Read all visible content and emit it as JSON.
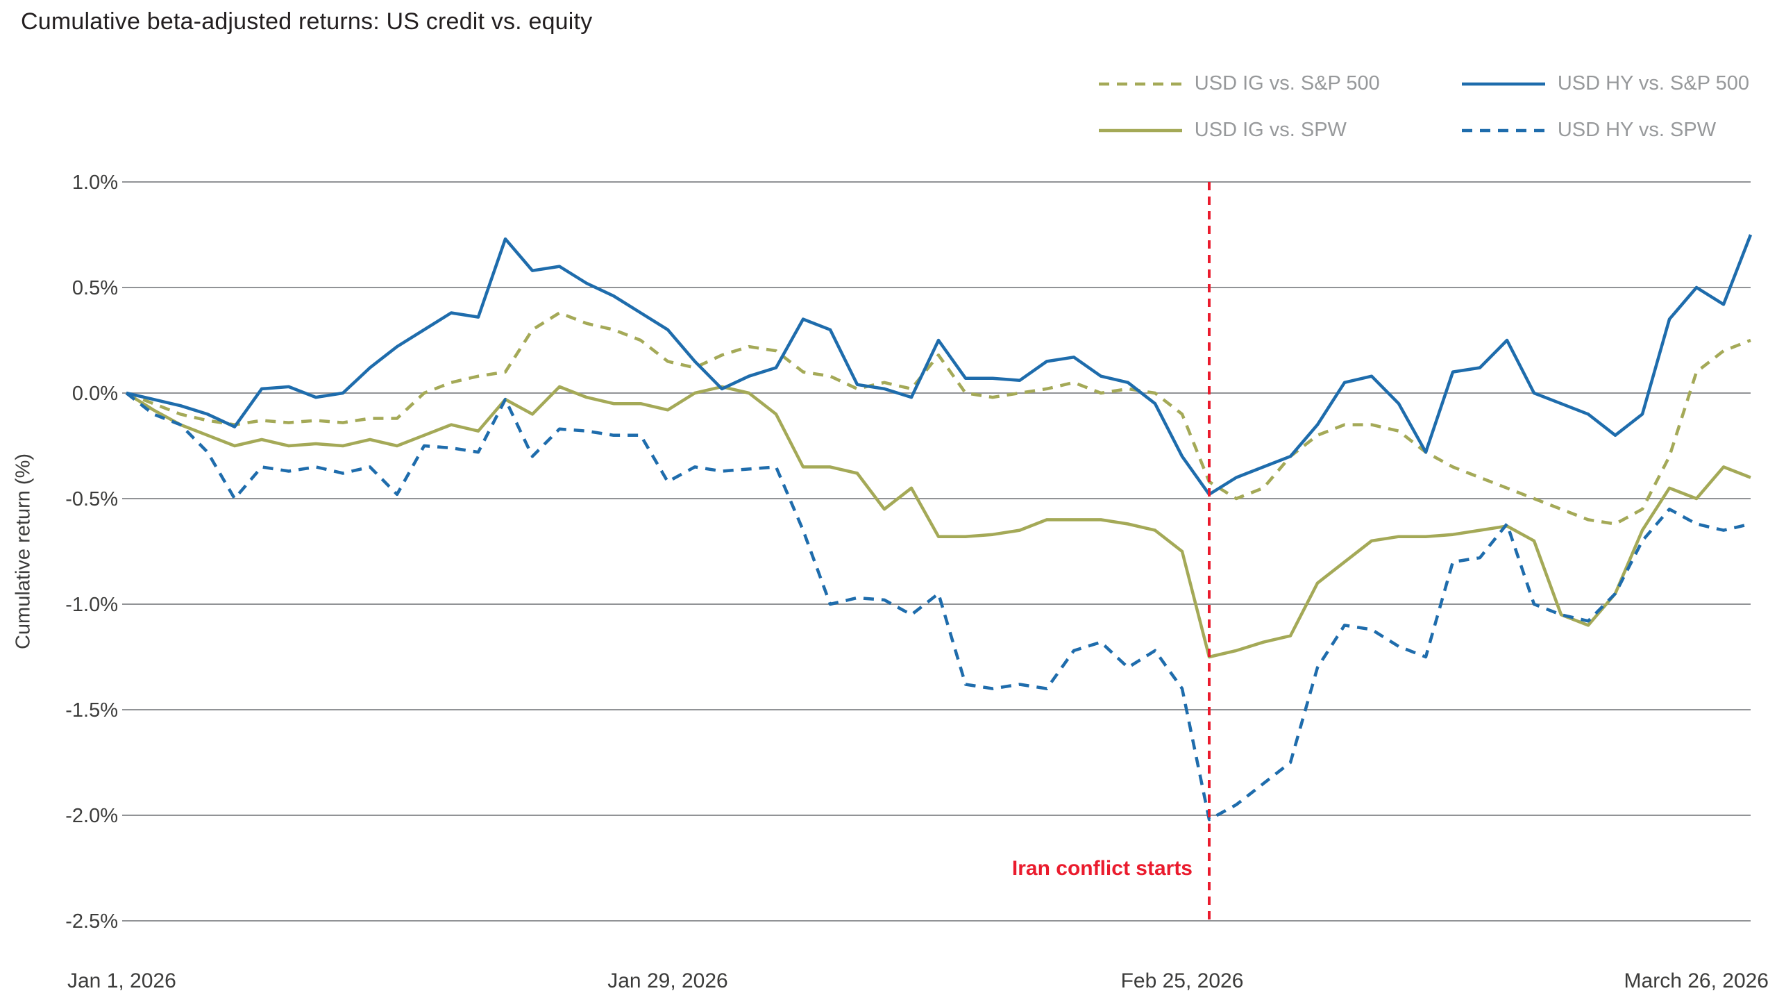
{
  "title": "Cumulative beta-adjusted returns: US credit vs. equity",
  "colors": {
    "olive": "#a4a957",
    "blue": "#1e6cac",
    "red": "#ea1b2d",
    "grid": "#919396",
    "axis_text": "#3c3c3b",
    "legend_text": "#97999b",
    "background": "#ffffff"
  },
  "annotation": {
    "text": "Iran conflict starts"
  },
  "chart_data": {
    "type": "line",
    "title": "Cumulative beta-adjusted returns: US credit vs. equity",
    "ylabel": "Cumulative return (%)",
    "xlabel": "",
    "ylim": [
      -2.5,
      1.0
    ],
    "y_ticks": [
      1.0,
      0.5,
      0.0,
      -0.5,
      -1.0,
      -1.5,
      -2.0,
      -2.5
    ],
    "y_tick_labels": [
      "1.0%",
      "0.5%",
      "0.0%",
      "-0.5%",
      "-1.0%",
      "-1.5%",
      "-2.0%",
      "-2.5%"
    ],
    "x_tick_labels": [
      "Jan 1, 2026",
      "Jan 29, 2026",
      "Feb 25, 2026",
      "March 26, 2026"
    ],
    "x_tick_positions": [
      0,
      20,
      39,
      60
    ],
    "x_range": [
      0,
      60
    ],
    "x_unit": "trading days, Jan 1 2026 - March 26 2026",
    "grid": "horizontal",
    "legend_position": "top-right",
    "legend_order": [
      0,
      2,
      1,
      3
    ],
    "event_line": {
      "x_position": 40,
      "label": "Iran conflict starts",
      "label_y": -2.25,
      "style": "dashed",
      "color": "#ea1b2d"
    },
    "series": [
      {
        "name": "USD IG vs. S&P 500",
        "color": "#a4a957",
        "style": "dashed",
        "values": [
          0.0,
          -0.05,
          -0.1,
          -0.13,
          -0.15,
          -0.13,
          -0.14,
          -0.13,
          -0.14,
          -0.12,
          -0.12,
          0.0,
          0.05,
          0.08,
          0.1,
          0.3,
          0.38,
          0.33,
          0.3,
          0.25,
          0.15,
          0.12,
          0.18,
          0.22,
          0.2,
          0.1,
          0.08,
          0.02,
          0.05,
          0.02,
          0.18,
          0.0,
          -0.02,
          0.0,
          0.02,
          0.05,
          0.0,
          0.02,
          0.0,
          -0.1,
          -0.42,
          -0.5,
          -0.45,
          -0.3,
          -0.2,
          -0.15,
          -0.15,
          -0.18,
          -0.28,
          -0.35,
          -0.4,
          -0.45,
          -0.5,
          -0.55,
          -0.6,
          -0.62,
          -0.55,
          -0.3,
          0.1,
          0.2,
          0.25
        ]
      },
      {
        "name": "USD IG vs. SPW",
        "color": "#a4a957",
        "style": "solid",
        "values": [
          0.0,
          -0.08,
          -0.15,
          -0.2,
          -0.25,
          -0.22,
          -0.25,
          -0.24,
          -0.25,
          -0.22,
          -0.25,
          -0.2,
          -0.15,
          -0.18,
          -0.03,
          -0.1,
          0.03,
          -0.02,
          -0.05,
          -0.05,
          -0.08,
          0.0,
          0.03,
          0.0,
          -0.1,
          -0.35,
          -0.35,
          -0.38,
          -0.55,
          -0.45,
          -0.68,
          -0.68,
          -0.67,
          -0.65,
          -0.6,
          -0.6,
          -0.6,
          -0.62,
          -0.65,
          -0.75,
          -1.25,
          -1.22,
          -1.18,
          -1.15,
          -0.9,
          -0.8,
          -0.7,
          -0.68,
          -0.68,
          -0.67,
          -0.65,
          -0.63,
          -0.7,
          -1.05,
          -1.1,
          -0.95,
          -0.65,
          -0.45,
          -0.5,
          -0.35,
          -0.4
        ]
      },
      {
        "name": "USD HY vs. S&P 500",
        "color": "#1e6cac",
        "style": "solid",
        "values": [
          0.0,
          -0.03,
          -0.06,
          -0.1,
          -0.16,
          0.02,
          0.03,
          -0.02,
          0.0,
          0.12,
          0.22,
          0.3,
          0.38,
          0.36,
          0.73,
          0.58,
          0.6,
          0.52,
          0.46,
          0.38,
          0.3,
          0.15,
          0.02,
          0.08,
          0.12,
          0.35,
          0.3,
          0.04,
          0.02,
          -0.02,
          0.25,
          0.07,
          0.07,
          0.06,
          0.15,
          0.17,
          0.08,
          0.05,
          -0.05,
          -0.3,
          -0.48,
          -0.4,
          -0.35,
          -0.3,
          -0.15,
          0.05,
          0.08,
          -0.05,
          -0.28,
          0.1,
          0.12,
          0.25,
          0.0,
          -0.05,
          -0.1,
          -0.2,
          -0.1,
          0.35,
          0.5,
          0.42,
          0.75
        ]
      },
      {
        "name": "USD HY vs. SPW",
        "color": "#1e6cac",
        "style": "dashed",
        "values": [
          0.0,
          -0.1,
          -0.15,
          -0.28,
          -0.5,
          -0.35,
          -0.37,
          -0.35,
          -0.38,
          -0.35,
          -0.48,
          -0.25,
          -0.26,
          -0.28,
          -0.03,
          -0.3,
          -0.17,
          -0.18,
          -0.2,
          -0.2,
          -0.42,
          -0.35,
          -0.37,
          -0.36,
          -0.35,
          -0.65,
          -1.0,
          -0.97,
          -0.98,
          -1.05,
          -0.95,
          -1.38,
          -1.4,
          -1.38,
          -1.4,
          -1.22,
          -1.18,
          -1.3,
          -1.22,
          -1.4,
          -2.02,
          -1.95,
          -1.85,
          -1.75,
          -1.3,
          -1.1,
          -1.12,
          -1.2,
          -1.25,
          -0.8,
          -0.78,
          -0.62,
          -1.0,
          -1.05,
          -1.08,
          -0.95,
          -0.7,
          -0.55,
          -0.62,
          -0.65,
          -0.62
        ]
      }
    ]
  }
}
